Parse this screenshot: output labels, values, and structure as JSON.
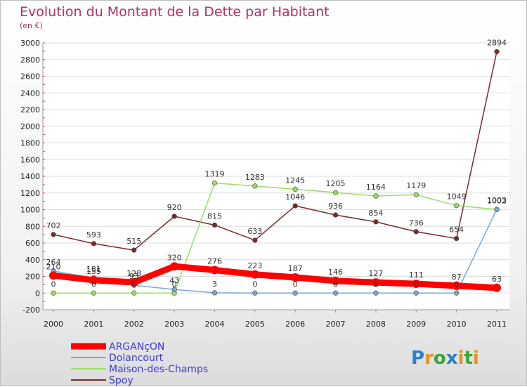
{
  "chart_data": {
    "type": "line",
    "title": "Evolution du Montant de la Dette par Habitant",
    "subtitle": "(en €)",
    "xlabel": "",
    "ylabel": "",
    "ylim": [
      -200,
      3000
    ],
    "yticks": [
      -200,
      0,
      200,
      400,
      600,
      800,
      1000,
      1200,
      1400,
      1600,
      1800,
      2000,
      2200,
      2400,
      2600,
      2800,
      3000
    ],
    "categories": [
      "2000",
      "2001",
      "2002",
      "2003",
      "2004",
      "2005",
      "2006",
      "2007",
      "2008",
      "2009",
      "2010",
      "2011"
    ],
    "grid": "horizontal",
    "legend": "bottom-left",
    "series": [
      {
        "name": "ARGANçON",
        "color": "#ff0000",
        "values": [
          210,
          155,
          128,
          320,
          276,
          223,
          187,
          146,
          127,
          111,
          87,
          63
        ],
        "labels": [
          "210",
          "155",
          "128",
          "320",
          "276",
          "223",
          "187",
          "146",
          "127",
          "111",
          "87",
          "63"
        ]
      },
      {
        "name": "Dolancourt",
        "color": "#7aa7d6",
        "values": [
          264,
          181,
          93,
          43,
          3,
          0,
          0,
          0,
          0,
          0,
          0,
          1003
        ],
        "labels": [
          "264",
          "181",
          "93",
          "43",
          "3",
          "0",
          "0",
          "0",
          "0",
          "0",
          "0",
          "1003"
        ]
      },
      {
        "name": "Maison-des-Champs",
        "color": "#99dd66",
        "values": [
          0,
          0,
          0,
          0,
          1319,
          1283,
          1245,
          1205,
          1164,
          1179,
          1049,
          1002
        ],
        "labels": [
          "0",
          "0",
          "0",
          "0",
          "1319",
          "1283",
          "1245",
          "1205",
          "1164",
          "1179",
          "1049",
          "1002"
        ]
      },
      {
        "name": "Spoy",
        "color": "#7a2a2a",
        "values": [
          702,
          593,
          515,
          920,
          815,
          633,
          1046,
          936,
          854,
          736,
          654,
          2894
        ],
        "labels": [
          "702",
          "593",
          "515",
          "920",
          "815",
          "633",
          "1046",
          "936",
          "854",
          "736",
          "654",
          "2894"
        ]
      }
    ]
  },
  "logo": {
    "letters": [
      "P",
      "r",
      "o",
      "x",
      "i",
      "t",
      "i"
    ],
    "colors": [
      "#2a7fd0",
      "#e8901e",
      "#36a836",
      "#2a7fd0",
      "#e8901e",
      "#36a836",
      "#e8901e"
    ]
  }
}
